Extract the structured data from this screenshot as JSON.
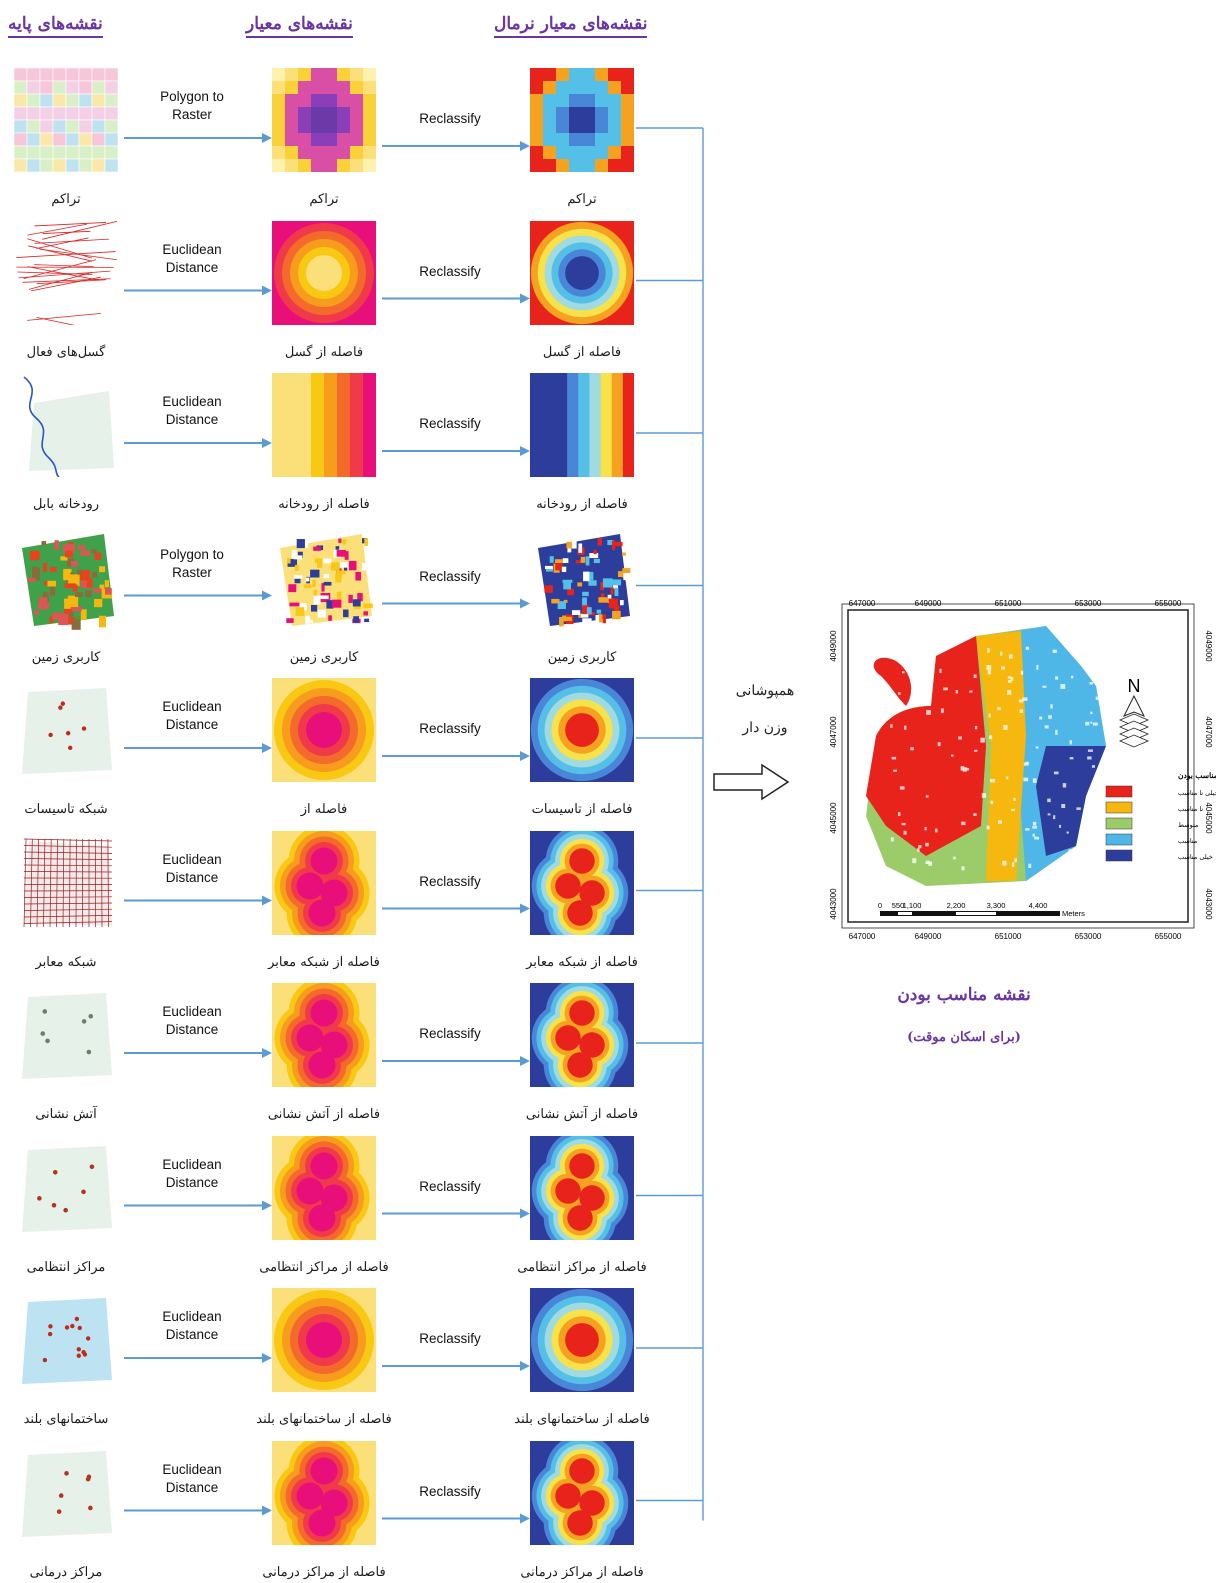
{
  "headers": {
    "base": "نقشه‌های پایه",
    "criteria": "نقشه‌های معیار",
    "normal": "نقشه‌های معیار نرمال"
  },
  "rows": [
    {
      "base": "تراکم",
      "criteria": "تراکم",
      "normal": "تراکم",
      "op": [
        "Polygon to",
        "Raster"
      ],
      "style": "grid"
    },
    {
      "base": "گسل‌های فعال",
      "criteria": "فاصله از گسل",
      "normal": "فاصله از گسل",
      "op": [
        "Euclidean",
        "Distance"
      ],
      "style": "fault"
    },
    {
      "base": "رودخانه بابل",
      "criteria": "فاصله از رودخانه",
      "normal": "فاصله از رودخانه",
      "op": [
        "Euclidean",
        "Distance"
      ],
      "style": "river"
    },
    {
      "base": "کاربری زمین",
      "criteria": "کاربری زمین",
      "normal": "کاربری زمین",
      "op": [
        "Polygon to",
        "Raster"
      ],
      "style": "landuse"
    },
    {
      "base": "شبکه تاسیسات",
      "criteria": "فاصله از",
      "normal": "فاصله از تاسیسات",
      "op": [
        "Euclidean",
        "Distance"
      ],
      "style": "blob"
    },
    {
      "base": "شبکه معابر",
      "criteria": "فاصله از شبکه معابر",
      "normal": "فاصله از شبکه معابر",
      "op": [
        "Euclidean",
        "Distance"
      ],
      "style": "network"
    },
    {
      "base": "آتش نشانی",
      "criteria": "فاصله از آتش نشانی",
      "normal": "فاصله از آتش نشانی",
      "op": [
        "Euclidean",
        "Distance"
      ],
      "style": "points"
    },
    {
      "base": "مراکز انتظامی",
      "criteria": "فاصله از مراکز انتظامی",
      "normal": "فاصله از مراکز انتظامی",
      "op": [
        "Euclidean",
        "Distance"
      ],
      "style": "points"
    },
    {
      "base": "ساختمانهای بلند",
      "criteria": "فاصله از ساختمانهای بلند",
      "normal": "فاصله از ساختمانهای بلند",
      "op": [
        "Euclidean",
        "Distance"
      ],
      "style": "blob"
    },
    {
      "base": "مراکز درمانی",
      "criteria": "فاصله از مراکز درمانی",
      "normal": "فاصله از مراکز درمانی",
      "op": [
        "Euclidean",
        "Distance"
      ],
      "style": "points"
    }
  ],
  "reclassify_label": "Reclassify",
  "overlay": {
    "line1": "همپوشانی",
    "line2": "وزن دار"
  },
  "final": {
    "title": "نقشه مناسب بودن",
    "subtitle": "(برای اسکان موقت)"
  },
  "map": {
    "x_ticks": [
      "647000",
      "649000",
      "651000",
      "653000",
      "655000"
    ],
    "y_ticks": [
      "4049000",
      "4047000",
      "4045000",
      "4043000"
    ],
    "legend_title": "نقشه مناسب بودن",
    "legend": [
      {
        "label": "خیلی نا مناسب",
        "color": "#e8231c"
      },
      {
        "label": "نا مناسب",
        "color": "#f6b70f"
      },
      {
        "label": "متوسط",
        "color": "#9ccc6a"
      },
      {
        "label": "مناسب",
        "color": "#4fb7e8"
      },
      {
        "label": "خیلی مناسب",
        "color": "#2c3d9c"
      }
    ],
    "scale": [
      "0",
      "550",
      "1,100",
      "2,200",
      "3,300",
      "4,400"
    ],
    "scale_unit": "Meters",
    "north": "N"
  },
  "palette": {
    "criteria": [
      "#e80f7a",
      "#f03a4a",
      "#f46a2a",
      "#f79c1d",
      "#f9c812",
      "#fbe07a"
    ],
    "normal": [
      "#2c3d9c",
      "#4a86d8",
      "#54c0e8",
      "#9fdbe0",
      "#f7e24a",
      "#f4a21f",
      "#e8231c"
    ],
    "arrow": "#5b9bd5"
  }
}
